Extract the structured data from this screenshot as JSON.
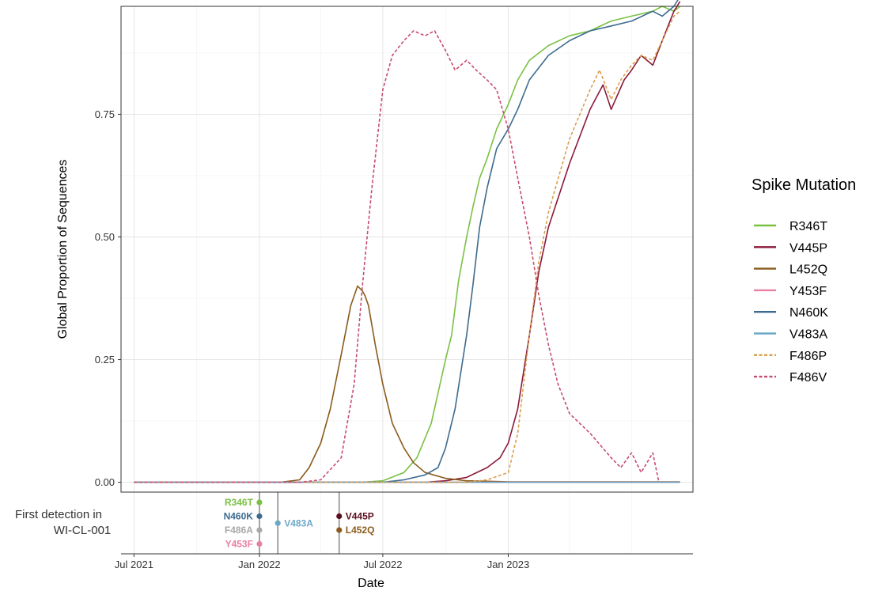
{
  "chart_data": {
    "type": "line",
    "ylabel": "Global Proportion of Sequences",
    "xlabel": "Date",
    "ylim": [
      -0.02,
      0.97
    ],
    "xlim": [
      "2021-06-12",
      "2023-09-29"
    ],
    "y_ticks": [
      {
        "value": 0.0,
        "label": "0.00"
      },
      {
        "value": 0.25,
        "label": "0.25"
      },
      {
        "value": 0.5,
        "label": "0.50"
      },
      {
        "value": 0.75,
        "label": "0.75"
      }
    ],
    "x_ticks": [
      {
        "date": "2021-07-01",
        "label": "Jul 2021"
      },
      {
        "date": "2022-01-01",
        "label": "Jan 2022"
      },
      {
        "date": "2022-07-01",
        "label": "Jul 2022"
      },
      {
        "date": "2023-01-01",
        "label": "Jan 2023"
      }
    ],
    "grid": true,
    "legend": {
      "title": "Spike Mutation",
      "position": "right"
    },
    "series": [
      {
        "name": "R346T",
        "color": "#7ac143",
        "dash": "solid",
        "points": [
          [
            "2021-07-01",
            0
          ],
          [
            "2022-06-01",
            0
          ],
          [
            "2022-07-01",
            0.003
          ],
          [
            "2022-08-01",
            0.02
          ],
          [
            "2022-08-20",
            0.05
          ],
          [
            "2022-09-10",
            0.12
          ],
          [
            "2022-10-01",
            0.25
          ],
          [
            "2022-10-10",
            0.3
          ],
          [
            "2022-10-20",
            0.41
          ],
          [
            "2022-11-01",
            0.5
          ],
          [
            "2022-11-10",
            0.56
          ],
          [
            "2022-11-20",
            0.62
          ],
          [
            "2022-12-01",
            0.66
          ],
          [
            "2022-12-15",
            0.72
          ],
          [
            "2023-01-01",
            0.77
          ],
          [
            "2023-01-15",
            0.82
          ],
          [
            "2023-02-01",
            0.86
          ],
          [
            "2023-03-01",
            0.89
          ],
          [
            "2023-04-01",
            0.91
          ],
          [
            "2023-05-01",
            0.92
          ],
          [
            "2023-06-01",
            0.94
          ],
          [
            "2023-07-01",
            0.95
          ],
          [
            "2023-08-01",
            0.96
          ],
          [
            "2023-08-15",
            0.97
          ],
          [
            "2023-09-01",
            0.96
          ],
          [
            "2023-09-10",
            0.97
          ]
        ]
      },
      {
        "name": "V445P",
        "color": "#8b1a3a",
        "dash": "solid",
        "points": [
          [
            "2021-07-01",
            0
          ],
          [
            "2022-09-01",
            0
          ],
          [
            "2022-10-01",
            0.003
          ],
          [
            "2022-11-01",
            0.01
          ],
          [
            "2022-12-01",
            0.03
          ],
          [
            "2022-12-20",
            0.05
          ],
          [
            "2023-01-01",
            0.08
          ],
          [
            "2023-01-15",
            0.15
          ],
          [
            "2023-02-01",
            0.3
          ],
          [
            "2023-02-15",
            0.43
          ],
          [
            "2023-03-01",
            0.52
          ],
          [
            "2023-04-01",
            0.65
          ],
          [
            "2023-05-01",
            0.76
          ],
          [
            "2023-05-20",
            0.81
          ],
          [
            "2023-06-01",
            0.76
          ],
          [
            "2023-06-20",
            0.82
          ],
          [
            "2023-07-01",
            0.84
          ],
          [
            "2023-07-15",
            0.87
          ],
          [
            "2023-08-01",
            0.85
          ],
          [
            "2023-08-15",
            0.9
          ],
          [
            "2023-09-01",
            0.96
          ],
          [
            "2023-09-10",
            0.98
          ]
        ]
      },
      {
        "name": "L452Q",
        "color": "#8b5a1a",
        "dash": "solid",
        "points": [
          [
            "2021-07-01",
            0
          ],
          [
            "2022-02-01",
            0
          ],
          [
            "2022-03-01",
            0.005
          ],
          [
            "2022-03-15",
            0.03
          ],
          [
            "2022-04-01",
            0.08
          ],
          [
            "2022-04-15",
            0.15
          ],
          [
            "2022-05-01",
            0.26
          ],
          [
            "2022-05-15",
            0.36
          ],
          [
            "2022-05-25",
            0.4
          ],
          [
            "2022-06-01",
            0.39
          ],
          [
            "2022-06-05",
            0.38
          ],
          [
            "2022-06-10",
            0.36
          ],
          [
            "2022-06-20",
            0.28
          ],
          [
            "2022-07-01",
            0.2
          ],
          [
            "2022-07-15",
            0.12
          ],
          [
            "2022-08-01",
            0.07
          ],
          [
            "2022-08-15",
            0.04
          ],
          [
            "2022-09-01",
            0.02
          ],
          [
            "2022-10-01",
            0.008
          ],
          [
            "2022-11-01",
            0.003
          ],
          [
            "2023-01-01",
            0.001
          ],
          [
            "2023-09-10",
            0.001
          ]
        ]
      },
      {
        "name": "Y453F",
        "color": "#e87fa5",
        "dash": "solid",
        "points": [
          [
            "2021-07-01",
            0
          ],
          [
            "2023-09-10",
            0
          ]
        ]
      },
      {
        "name": "N460K",
        "color": "#3d6b8f",
        "dash": "solid",
        "points": [
          [
            "2021-07-01",
            0
          ],
          [
            "2022-07-01",
            0
          ],
          [
            "2022-08-01",
            0.005
          ],
          [
            "2022-09-01",
            0.015
          ],
          [
            "2022-09-20",
            0.03
          ],
          [
            "2022-10-01",
            0.07
          ],
          [
            "2022-10-15",
            0.15
          ],
          [
            "2022-11-01",
            0.3
          ],
          [
            "2022-11-10",
            0.4
          ],
          [
            "2022-11-20",
            0.52
          ],
          [
            "2022-12-01",
            0.6
          ],
          [
            "2022-12-15",
            0.68
          ],
          [
            "2023-01-01",
            0.72
          ],
          [
            "2023-01-15",
            0.76
          ],
          [
            "2023-02-01",
            0.82
          ],
          [
            "2023-03-01",
            0.87
          ],
          [
            "2023-04-01",
            0.9
          ],
          [
            "2023-05-01",
            0.92
          ],
          [
            "2023-06-01",
            0.93
          ],
          [
            "2023-07-01",
            0.94
          ],
          [
            "2023-08-01",
            0.96
          ],
          [
            "2023-08-15",
            0.95
          ],
          [
            "2023-09-01",
            0.97
          ],
          [
            "2023-09-10",
            0.99
          ]
        ]
      },
      {
        "name": "V483A",
        "color": "#6ba8c8",
        "dash": "solid",
        "points": [
          [
            "2021-07-01",
            0
          ],
          [
            "2023-09-10",
            0
          ]
        ]
      },
      {
        "name": "F486P",
        "color": "#d9a050",
        "dash": "dashed",
        "points": [
          [
            "2021-07-01",
            0
          ],
          [
            "2022-11-01",
            0
          ],
          [
            "2022-12-01",
            0.005
          ],
          [
            "2023-01-01",
            0.02
          ],
          [
            "2023-01-15",
            0.1
          ],
          [
            "2023-02-01",
            0.3
          ],
          [
            "2023-02-15",
            0.45
          ],
          [
            "2023-03-01",
            0.55
          ],
          [
            "2023-04-01",
            0.7
          ],
          [
            "2023-05-01",
            0.8
          ],
          [
            "2023-05-15",
            0.84
          ],
          [
            "2023-06-01",
            0.78
          ],
          [
            "2023-06-15",
            0.82
          ],
          [
            "2023-07-01",
            0.85
          ],
          [
            "2023-07-15",
            0.87
          ],
          [
            "2023-08-01",
            0.86
          ],
          [
            "2023-08-15",
            0.9
          ],
          [
            "2023-09-01",
            0.95
          ],
          [
            "2023-09-10",
            0.96
          ]
        ]
      },
      {
        "name": "F486V",
        "color": "#c74b6e",
        "dash": "dashed",
        "points": [
          [
            "2021-07-01",
            0
          ],
          [
            "2022-03-01",
            0
          ],
          [
            "2022-04-01",
            0.005
          ],
          [
            "2022-05-01",
            0.05
          ],
          [
            "2022-05-20",
            0.2
          ],
          [
            "2022-06-01",
            0.4
          ],
          [
            "2022-06-15",
            0.6
          ],
          [
            "2022-07-01",
            0.8
          ],
          [
            "2022-07-15",
            0.87
          ],
          [
            "2022-08-01",
            0.9
          ],
          [
            "2022-08-15",
            0.92
          ],
          [
            "2022-09-01",
            0.91
          ],
          [
            "2022-09-15",
            0.92
          ],
          [
            "2022-10-01",
            0.88
          ],
          [
            "2022-10-15",
            0.84
          ],
          [
            "2022-11-01",
            0.86
          ],
          [
            "2022-11-15",
            0.84
          ],
          [
            "2022-12-01",
            0.82
          ],
          [
            "2022-12-15",
            0.8
          ],
          [
            "2023-01-01",
            0.72
          ],
          [
            "2023-01-15",
            0.62
          ],
          [
            "2023-02-01",
            0.5
          ],
          [
            "2023-02-15",
            0.38
          ],
          [
            "2023-03-01",
            0.28
          ],
          [
            "2023-03-15",
            0.2
          ],
          [
            "2023-04-01",
            0.14
          ],
          [
            "2023-05-01",
            0.1
          ],
          [
            "2023-06-01",
            0.05
          ],
          [
            "2023-06-15",
            0.03
          ],
          [
            "2023-07-01",
            0.06
          ],
          [
            "2023-07-15",
            0.02
          ],
          [
            "2023-08-01",
            0.06
          ],
          [
            "2023-08-10",
            0.0
          ]
        ]
      }
    ]
  },
  "detection_panel": {
    "caption_line1": "First detection in",
    "caption_line2": "WI-CL-001",
    "vlines": [
      "2022-01-01",
      "2022-01-28",
      "2022-04-28"
    ],
    "points": [
      {
        "name": "R346T",
        "date": "2022-01-01",
        "label": "R346T",
        "color": "#7ac143",
        "row": 0,
        "side": "left"
      },
      {
        "name": "N460K",
        "date": "2022-01-01",
        "label": "N460K",
        "color": "#3d6b8f",
        "row": 1,
        "side": "left"
      },
      {
        "name": "F486A",
        "date": "2022-01-01",
        "label": "F486A",
        "color": "#a8a8a8",
        "row": 2,
        "side": "left"
      },
      {
        "name": "Y453F",
        "date": "2022-01-01",
        "label": "Y453F",
        "color": "#e87fa5",
        "row": 3,
        "side": "left"
      },
      {
        "name": "V483A",
        "date": "2022-01-28",
        "label": "V483A",
        "color": "#6ba8c8",
        "row": 1.5,
        "side": "right"
      },
      {
        "name": "V445P",
        "date": "2022-04-28",
        "label": "V445P",
        "color": "#5a0d1e",
        "row": 1,
        "side": "right"
      },
      {
        "name": "L452Q",
        "date": "2022-04-28",
        "label": "L452Q",
        "color": "#8b5a1a",
        "row": 2,
        "side": "right"
      }
    ]
  }
}
